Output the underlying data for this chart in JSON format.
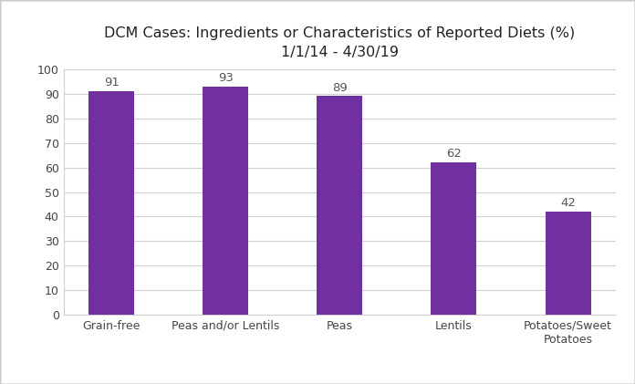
{
  "title_line1": "DCM Cases: Ingredients or Characteristics of Reported Diets (%)",
  "title_line2": "1/1/14 - 4/30/19",
  "categories": [
    "Grain-free",
    "Peas and/or Lentils",
    "Peas",
    "Lentils",
    "Potatoes/Sweet\nPotatoes"
  ],
  "values": [
    91,
    93,
    89,
    62,
    42
  ],
  "bar_color": "#7030a0",
  "ylim": [
    0,
    100
  ],
  "yticks": [
    0,
    10,
    20,
    30,
    40,
    50,
    60,
    70,
    80,
    90,
    100
  ],
  "background_color": "#ffffff",
  "grid_color": "#d0d0d0",
  "label_color": "#555555",
  "bar_width": 0.4,
  "title_fontsize": 11.5,
  "tick_fontsize": 9,
  "value_label_fontsize": 9.5
}
